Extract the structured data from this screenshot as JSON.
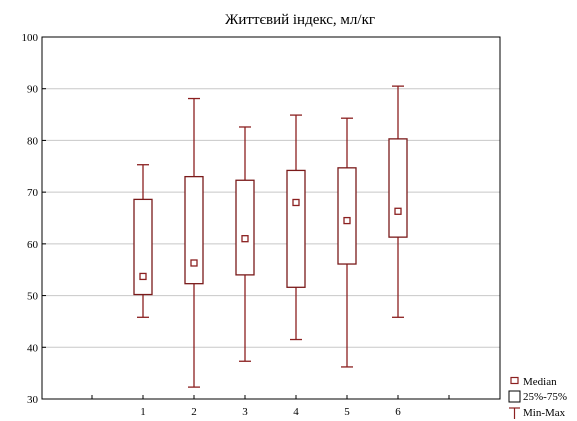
{
  "chart_data": {
    "type": "boxplot",
    "title": "Життєвий індекс, мл/кг",
    "xlabel": "",
    "ylabel": "",
    "categories": [
      "1",
      "2",
      "3",
      "4",
      "5",
      "6"
    ],
    "ylim": [
      30,
      100
    ],
    "yticks": [
      30,
      40,
      50,
      60,
      70,
      80,
      90,
      100
    ],
    "grid": true,
    "legend_position": "bottom-right",
    "legend": {
      "median": "Median",
      "box": "25%-75%",
      "whisker": "Min-Max"
    },
    "boxes": [
      {
        "category": "1",
        "min": 45.8,
        "q1": 50.2,
        "median": 53.7,
        "q3": 68.6,
        "max": 75.3
      },
      {
        "category": "2",
        "min": 32.3,
        "q1": 52.3,
        "median": 56.3,
        "q3": 73.0,
        "max": 88.1
      },
      {
        "category": "3",
        "min": 37.3,
        "q1": 54.0,
        "median": 61.0,
        "q3": 72.3,
        "max": 82.6
      },
      {
        "category": "4",
        "min": 41.5,
        "q1": 51.6,
        "median": 68.0,
        "q3": 74.2,
        "max": 84.9
      },
      {
        "category": "5",
        "min": 36.2,
        "q1": 56.1,
        "median": 64.5,
        "q3": 74.7,
        "max": 84.3
      },
      {
        "category": "6",
        "min": 45.8,
        "q1": 61.3,
        "median": 66.3,
        "q3": 80.3,
        "max": 90.5
      }
    ],
    "colors": {
      "box": "#7a1a1a",
      "whisker": "#8b2020",
      "median": "#8b2020",
      "grid": "#c8c8c8",
      "axis": "#000000"
    }
  }
}
